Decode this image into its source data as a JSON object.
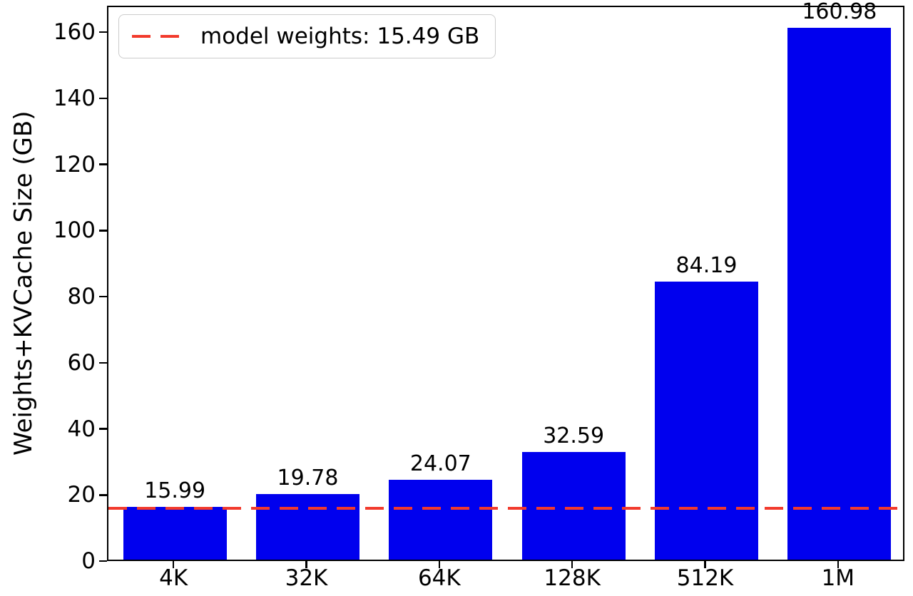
{
  "chart_data": {
    "type": "bar",
    "title": "",
    "categories": [
      "4K",
      "32K",
      "64K",
      "128K",
      "512K",
      "1M"
    ],
    "values": [
      15.99,
      19.78,
      24.07,
      32.59,
      84.19,
      160.98
    ],
    "bar_labels": [
      "15.99",
      "19.78",
      "24.07",
      "32.59",
      "84.19",
      "160.98"
    ],
    "xlabel": "",
    "ylabel": "Weights+KVCache Size (GB)",
    "ylim": [
      0,
      168
    ],
    "yticks": [
      0,
      20,
      40,
      60,
      80,
      100,
      120,
      140,
      160
    ],
    "grid": false,
    "bar_color": "#0000ee",
    "legend_position": "upper left",
    "reference_line": {
      "value": 15.49,
      "style": "dashed",
      "color": "#f23a2c",
      "label": "model weights: 15.49 GB"
    }
  }
}
